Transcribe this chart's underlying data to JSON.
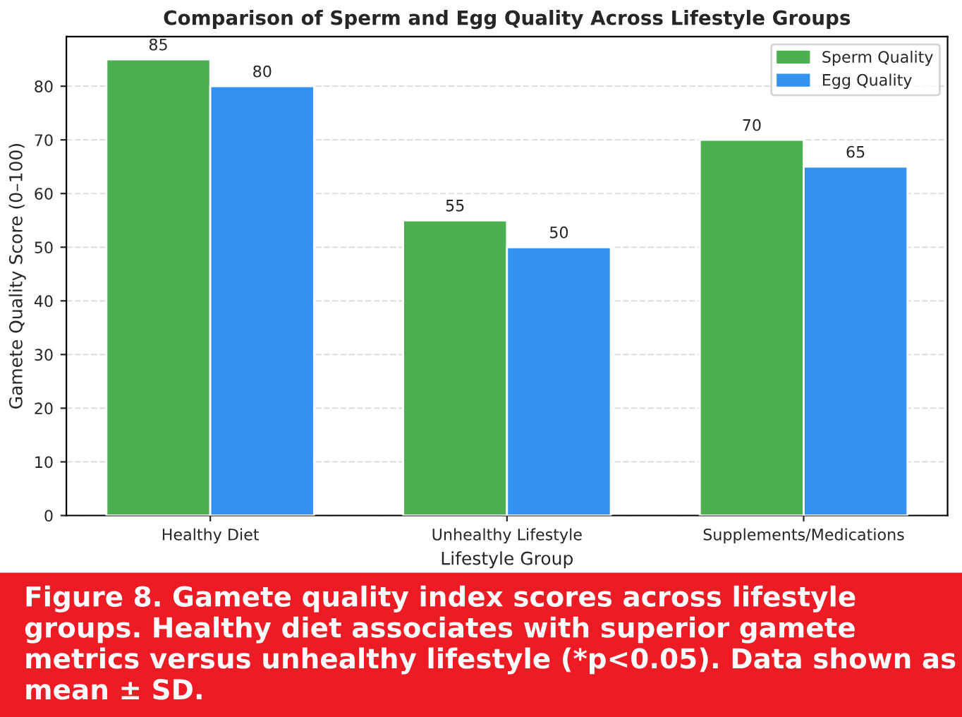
{
  "chart_data": {
    "type": "bar",
    "title": "Comparison of Sperm and Egg Quality Across Lifestyle Groups",
    "xlabel": "Lifestyle Group",
    "ylabel": "Gamete Quality Score (0–100)",
    "categories": [
      "Healthy Diet",
      "Unhealthy Lifestyle",
      "Supplements/Medications"
    ],
    "series": [
      {
        "name": "Sperm Quality",
        "color": "#4caf50",
        "values": [
          85,
          55,
          70
        ]
      },
      {
        "name": "Egg Quality",
        "color": "#3392ef",
        "values": [
          80,
          50,
          65
        ]
      }
    ],
    "ylim": [
      0,
      89.25
    ],
    "yticks": [
      0,
      10,
      20,
      30,
      40,
      50,
      60,
      70,
      80
    ],
    "grid": "y",
    "legend": "top right",
    "data_labels": true,
    "annotations": [
      "Figure 8. Gamete quality index scores across lifestyle groups. Healthy diet associates with superior gamete metrics versus unhealthy lifestyle (*p<0.05). Data shown as mean ± SD."
    ]
  }
}
